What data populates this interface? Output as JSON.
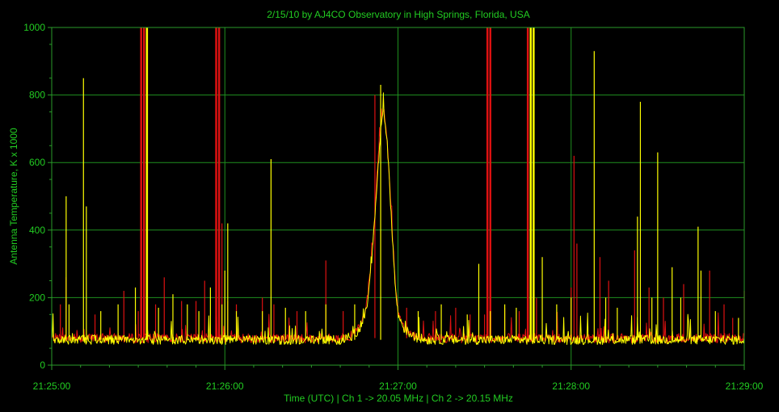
{
  "chart_data": {
    "type": "line",
    "title": "2/15/10  by  AJ4CO Observatory  in  High Springs, Florida, USA",
    "xlabel": "Time (UTC)  |  Ch 1 -> 20.05 MHz  |  Ch 2 -> 20.15 MHz",
    "ylabel": "Antenna Temperature, K x 1000",
    "xlim": [
      "21:25:00",
      "21:29:00"
    ],
    "ylim": [
      0,
      1000
    ],
    "x_ticks": [
      "21:25:00",
      "21:26:00",
      "21:27:00",
      "21:28:00",
      "21:29:00"
    ],
    "y_ticks": [
      0,
      200,
      400,
      600,
      800,
      1000
    ],
    "grid": true,
    "colors": {
      "background": "#000000",
      "grid": "#1f8f1f",
      "text": "#22cc22"
    },
    "series": [
      {
        "color": "#dd1111",
        "baseline": 80,
        "points": [
          [
            "21:25:00",
            80
          ],
          [
            "21:26:40",
            80
          ],
          [
            "21:26:44",
            88
          ],
          [
            "21:26:47",
            115
          ],
          [
            "21:26:49",
            170
          ],
          [
            "21:26:50",
            240
          ],
          [
            "21:26:51",
            330
          ],
          [
            "21:26:52",
            450
          ],
          [
            "21:26:53",
            580
          ],
          [
            "21:26:54",
            700
          ],
          [
            "21:26:55",
            760
          ],
          [
            "21:26:56",
            700
          ],
          [
            "21:26:57",
            560
          ],
          [
            "21:26:58",
            400
          ],
          [
            "21:26:59",
            250
          ],
          [
            "21:27:00",
            160
          ],
          [
            "21:27:02",
            115
          ],
          [
            "21:27:05",
            90
          ],
          [
            "21:27:10",
            80
          ],
          [
            "21:29:00",
            80
          ]
        ],
        "spikes": [
          [
            "21:25:03",
            180
          ],
          [
            "21:25:05",
            260
          ],
          [
            "21:25:15",
            150
          ],
          [
            "21:25:25",
            220
          ],
          [
            "21:25:30",
            160
          ],
          [
            "21:25:31",
            1000
          ],
          [
            "21:25:32",
            1000
          ],
          [
            "21:25:33",
            1000
          ],
          [
            "21:25:36",
            180
          ],
          [
            "21:25:39",
            260
          ],
          [
            "21:25:45",
            190
          ],
          [
            "21:25:50",
            190
          ],
          [
            "21:25:53",
            250
          ],
          [
            "21:25:57",
            1000
          ],
          [
            "21:25:58",
            1000
          ],
          [
            "21:25:59",
            420
          ],
          [
            "21:26:01",
            190
          ],
          [
            "21:26:04",
            180
          ],
          [
            "21:26:13",
            200
          ],
          [
            "21:26:17",
            180
          ],
          [
            "21:26:25",
            160
          ],
          [
            "21:26:35",
            310
          ],
          [
            "21:26:41",
            160
          ],
          [
            "21:26:52",
            800
          ],
          [
            "21:27:03",
            170
          ],
          [
            "21:27:13",
            160
          ],
          [
            "21:27:20",
            170
          ],
          [
            "21:27:25",
            150
          ],
          [
            "21:27:30",
            150
          ],
          [
            "21:27:31",
            1000
          ],
          [
            "21:27:32",
            1000
          ],
          [
            "21:27:37",
            170
          ],
          [
            "21:27:42",
            160
          ],
          [
            "21:27:45",
            1000
          ],
          [
            "21:27:46",
            1000
          ],
          [
            "21:27:48",
            200
          ],
          [
            "21:28:00",
            230
          ],
          [
            "21:28:01",
            620
          ],
          [
            "21:28:02",
            360
          ],
          [
            "21:28:10",
            320
          ],
          [
            "21:28:13",
            250
          ],
          [
            "21:28:22",
            340
          ],
          [
            "21:28:27",
            230
          ],
          [
            "21:28:32",
            200
          ],
          [
            "21:28:39",
            240
          ],
          [
            "21:28:48",
            280
          ],
          [
            "21:28:53",
            180
          ],
          [
            "21:28:56",
            140
          ],
          [
            "21:29:00",
            220
          ]
        ]
      },
      {
        "color": "#ffff00",
        "baseline": 75,
        "points": [
          [
            "21:25:00",
            75
          ],
          [
            "21:26:40",
            75
          ],
          [
            "21:26:44",
            85
          ],
          [
            "21:26:47",
            110
          ],
          [
            "21:26:49",
            160
          ],
          [
            "21:26:50",
            230
          ],
          [
            "21:26:51",
            320
          ],
          [
            "21:26:52",
            440
          ],
          [
            "21:26:53",
            570
          ],
          [
            "21:26:54",
            690
          ],
          [
            "21:26:55",
            750
          ],
          [
            "21:26:56",
            690
          ],
          [
            "21:26:57",
            550
          ],
          [
            "21:26:58",
            390
          ],
          [
            "21:26:59",
            240
          ],
          [
            "21:27:00",
            150
          ],
          [
            "21:27:02",
            110
          ],
          [
            "21:27:05",
            85
          ],
          [
            "21:27:10",
            75
          ],
          [
            "21:29:00",
            75
          ]
        ],
        "spikes": [
          [
            "21:25:05",
            500
          ],
          [
            "21:25:06",
            180
          ],
          [
            "21:25:11",
            850
          ],
          [
            "21:25:12",
            470
          ],
          [
            "21:25:17",
            160
          ],
          [
            "21:25:23",
            180
          ],
          [
            "21:25:29",
            230
          ],
          [
            "21:25:33",
            1000
          ],
          [
            "21:25:37",
            170
          ],
          [
            "21:25:42",
            210
          ],
          [
            "21:25:47",
            180
          ],
          [
            "21:25:51",
            160
          ],
          [
            "21:25:55",
            230
          ],
          [
            "21:25:59",
            180
          ],
          [
            "21:26:00",
            280
          ],
          [
            "21:26:01",
            420
          ],
          [
            "21:26:04",
            160
          ],
          [
            "21:26:13",
            160
          ],
          [
            "21:26:16",
            610
          ],
          [
            "21:26:21",
            170
          ],
          [
            "21:26:28",
            160
          ],
          [
            "21:26:35",
            180
          ],
          [
            "21:26:45",
            180
          ],
          [
            "21:26:54",
            830
          ],
          [
            "21:27:07",
            160
          ],
          [
            "21:27:15",
            180
          ],
          [
            "21:27:24",
            150
          ],
          [
            "21:27:28",
            300
          ],
          [
            "21:27:32",
            160
          ],
          [
            "21:27:37",
            180
          ],
          [
            "21:27:41",
            170
          ],
          [
            "21:27:46",
            1000
          ],
          [
            "21:27:47",
            1000
          ],
          [
            "21:27:50",
            320
          ],
          [
            "21:27:55",
            180
          ],
          [
            "21:28:00",
            200
          ],
          [
            "21:28:08",
            930
          ],
          [
            "21:28:12",
            200
          ],
          [
            "21:28:16",
            170
          ],
          [
            "21:28:23",
            440
          ],
          [
            "21:28:24",
            780
          ],
          [
            "21:28:28",
            200
          ],
          [
            "21:28:30",
            630
          ],
          [
            "21:28:35",
            290
          ],
          [
            "21:28:38",
            200
          ],
          [
            "21:28:44",
            410
          ],
          [
            "21:28:45",
            280
          ],
          [
            "21:28:50",
            160
          ],
          [
            "21:28:58",
            140
          ]
        ]
      }
    ]
  }
}
